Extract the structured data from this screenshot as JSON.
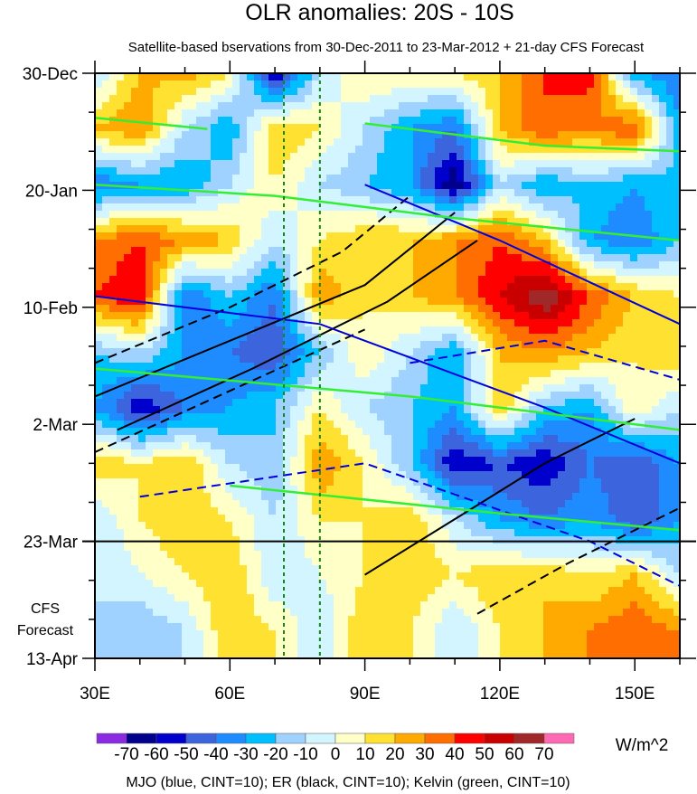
{
  "chart_data": {
    "type": "heatmap",
    "title": "OLR anomalies: 20S - 10S",
    "subtitle": "Satellite-based bservations from 30-Dec-2011 to 23-Mar-2012 + 21-day CFS Forecast",
    "xlabel": "",
    "ylabel": "",
    "x_range": [
      30,
      160
    ],
    "x_ticks": [
      {
        "value": 30,
        "label": "30E"
      },
      {
        "value": 60,
        "label": "60E"
      },
      {
        "value": 90,
        "label": "90E"
      },
      {
        "value": 120,
        "label": "120E"
      },
      {
        "value": 150,
        "label": "150E"
      }
    ],
    "y_range_days": [
      0,
      105
    ],
    "y_ticks": [
      {
        "value": 0,
        "label": "30-Dec"
      },
      {
        "value": 21,
        "label": "20-Jan"
      },
      {
        "value": 42,
        "label": "10-Feb"
      },
      {
        "value": 63,
        "label": "2-Mar"
      },
      {
        "value": 84,
        "label": "23-Mar"
      },
      {
        "value": 105,
        "label": "13-Apr"
      }
    ],
    "forecast_start_day": 84,
    "forecast_label": [
      "CFS",
      "Forecast"
    ],
    "units": "W/m^2",
    "levels": [
      -70,
      -60,
      -50,
      -40,
      -30,
      -20,
      -10,
      0,
      10,
      20,
      30,
      40,
      50,
      60,
      70
    ],
    "level_labels": [
      "-70",
      "-60",
      "-50",
      "-40",
      "-30",
      "-20",
      "-10",
      "0",
      "10",
      "20",
      "30",
      "40",
      "50",
      "60",
      "70"
    ],
    "colors": [
      "#8a2be2",
      "#00008c",
      "#0000cd",
      "#3c64dc",
      "#1e8cff",
      "#00bfff",
      "#a0d2ff",
      "#d2f5ff",
      "#ffffc8",
      "#ffe132",
      "#ffaa00",
      "#ff6e00",
      "#ff0000",
      "#c80000",
      "#a02828",
      "#ff69b4"
    ],
    "grid_lons": [
      30,
      40,
      50,
      60,
      70,
      80,
      90,
      100,
      110,
      120,
      130,
      140,
      150,
      160
    ],
    "grid_days": [
      0,
      10,
      20,
      30,
      40,
      50,
      60,
      70,
      80,
      90,
      100
    ],
    "values": [
      [
        -10,
        20,
        25,
        10,
        -60,
        -10,
        10,
        10,
        10,
        20,
        40,
        45,
        -30,
        -40
      ],
      [
        20,
        30,
        -10,
        -30,
        20,
        10,
        -10,
        -30,
        -40,
        20,
        40,
        30,
        40,
        -30
      ],
      [
        -40,
        -30,
        -30,
        -10,
        10,
        -10,
        -20,
        -30,
        -70,
        -10,
        -30,
        -20,
        -30,
        -20
      ],
      [
        30,
        40,
        30,
        20,
        -10,
        10,
        20,
        20,
        30,
        40,
        20,
        -30,
        -40,
        -20
      ],
      [
        40,
        50,
        -40,
        -20,
        -40,
        30,
        10,
        20,
        30,
        50,
        70,
        40,
        20,
        10
      ],
      [
        -20,
        -10,
        -30,
        -40,
        -50,
        -20,
        10,
        -10,
        -30,
        20,
        30,
        20,
        10,
        20
      ],
      [
        -30,
        -60,
        -40,
        -30,
        -20,
        10,
        -10,
        -20,
        -30,
        20,
        -20,
        -30,
        10,
        -10
      ],
      [
        20,
        10,
        20,
        -10,
        -20,
        30,
        10,
        -20,
        -60,
        -50,
        -60,
        -40,
        -50,
        -30
      ],
      [
        -10,
        10,
        20,
        10,
        -10,
        10,
        10,
        20,
        -10,
        -30,
        -40,
        -30,
        -50,
        -30
      ],
      [
        -10,
        0,
        10,
        20,
        -10,
        0,
        10,
        20,
        10,
        20,
        20,
        10,
        20,
        -10
      ],
      [
        -10,
        -20,
        -10,
        20,
        10,
        -10,
        20,
        10,
        -10,
        10,
        20,
        30,
        40,
        30
      ]
    ],
    "contours": [
      {
        "name": "ER positive",
        "color": "#000000",
        "dashed": false,
        "points": [
          [
            30,
            58
          ],
          [
            60,
            48
          ],
          [
            90,
            38
          ],
          [
            110,
            25
          ]
        ]
      },
      {
        "name": "ER positive",
        "color": "#000000",
        "dashed": false,
        "points": [
          [
            35,
            64
          ],
          [
            65,
            53
          ],
          [
            95,
            41
          ],
          [
            115,
            30
          ]
        ]
      },
      {
        "name": "ER positive",
        "color": "#000000",
        "dashed": false,
        "points": [
          [
            90,
            90
          ],
          [
            110,
            80
          ],
          [
            130,
            70
          ],
          [
            150,
            62
          ]
        ]
      },
      {
        "name": "ER negative",
        "color": "#000000",
        "dashed": true,
        "points": [
          [
            30,
            52
          ],
          [
            60,
            42
          ],
          [
            85,
            32
          ],
          [
            100,
            22
          ]
        ]
      },
      {
        "name": "ER negative",
        "color": "#000000",
        "dashed": true,
        "points": [
          [
            30,
            68
          ],
          [
            60,
            57
          ],
          [
            90,
            46
          ]
        ]
      },
      {
        "name": "ER negative",
        "color": "#000000",
        "dashed": true,
        "points": [
          [
            115,
            97
          ],
          [
            135,
            88
          ],
          [
            160,
            78
          ]
        ]
      },
      {
        "name": "MJO positive",
        "color": "#0000dd",
        "dashed": false,
        "points": [
          [
            30,
            40
          ],
          [
            80,
            45
          ],
          [
            130,
            60
          ],
          [
            160,
            70
          ]
        ]
      },
      {
        "name": "MJO positive",
        "color": "#0000dd",
        "dashed": false,
        "points": [
          [
            90,
            20
          ],
          [
            120,
            30
          ],
          [
            160,
            45
          ]
        ]
      },
      {
        "name": "MJO negative",
        "color": "#0000dd",
        "dashed": true,
        "points": [
          [
            40,
            76
          ],
          [
            90,
            70
          ],
          [
            140,
            84
          ],
          [
            160,
            92
          ]
        ]
      },
      {
        "name": "MJO negative",
        "color": "#0000dd",
        "dashed": true,
        "points": [
          [
            100,
            52
          ],
          [
            130,
            48
          ],
          [
            160,
            55
          ]
        ]
      },
      {
        "name": "Kelvin",
        "color": "#33ee33",
        "dashed": false,
        "points": [
          [
            30,
            8
          ],
          [
            55,
            10
          ]
        ]
      },
      {
        "name": "Kelvin",
        "color": "#33ee33",
        "dashed": false,
        "points": [
          [
            30,
            20
          ],
          [
            70,
            22
          ],
          [
            110,
            26
          ],
          [
            160,
            30
          ]
        ]
      },
      {
        "name": "Kelvin",
        "color": "#33ee33",
        "dashed": false,
        "points": [
          [
            30,
            53
          ],
          [
            100,
            58
          ],
          [
            160,
            64
          ]
        ]
      },
      {
        "name": "Kelvin",
        "color": "#33ee33",
        "dashed": false,
        "points": [
          [
            60,
            74
          ],
          [
            120,
            79
          ],
          [
            160,
            82
          ]
        ]
      },
      {
        "name": "Kelvin",
        "color": "#33ee33",
        "dashed": false,
        "points": [
          [
            90,
            9
          ],
          [
            130,
            13
          ],
          [
            160,
            14
          ]
        ]
      }
    ],
    "reference_lons": [
      72,
      80
    ],
    "footer": "MJO (blue, CINT=10); ER (black, CINT=10); Kelvin (green, CINT=10)"
  }
}
